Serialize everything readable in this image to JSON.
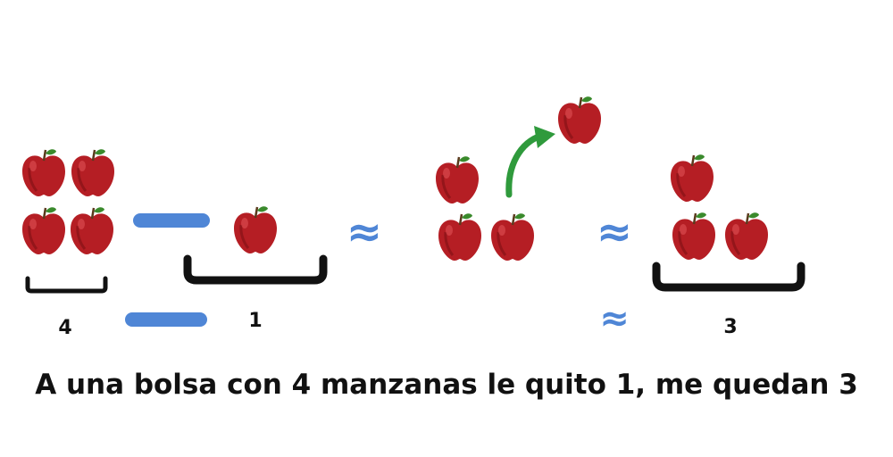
{
  "colors": {
    "apple": "#b51e24",
    "apple_dark": "#7e0f14",
    "leaf": "#3a8a2c",
    "stem": "#5b3a1d",
    "bracket": "#111111",
    "symbol_blue": "#4f86d6",
    "arrow_green": "#2f9a3c",
    "text": "#111111"
  },
  "groups": [
    {
      "name": "start",
      "label": "4",
      "apples": 4
    },
    {
      "name": "removed",
      "label": "1",
      "apples": 1
    },
    {
      "name": "result",
      "label": "3",
      "apples": 3
    }
  ],
  "symbols": {
    "minus": "−",
    "approx": "≈"
  },
  "icons": [
    "apple-icon",
    "leaf-icon",
    "curved-arrow-icon",
    "bracket-icon"
  ],
  "caption": "A una bolsa con 4 manzanas le quito 1, me quedan 3"
}
